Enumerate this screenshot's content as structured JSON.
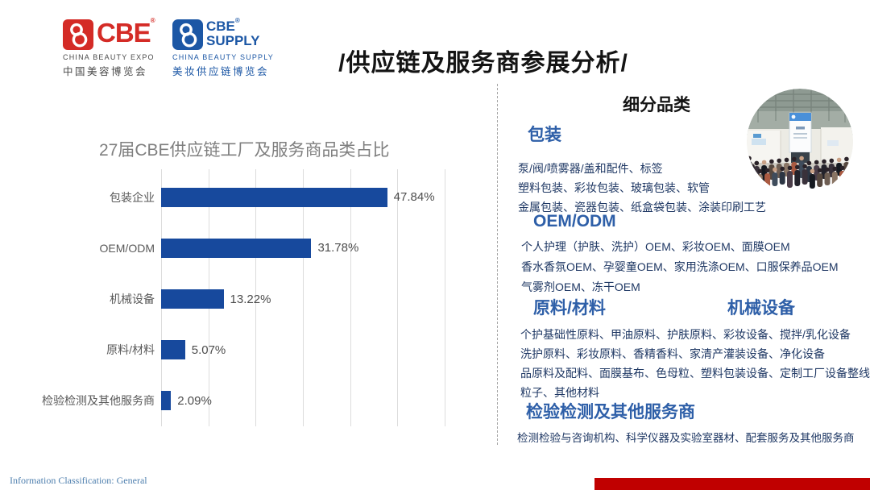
{
  "header": {
    "title": "/供应链及服务商参展分析/",
    "logo_cbe": {
      "wordmark": "CBE",
      "reg": "®",
      "subtitle_en": "CHINA BEAUTY EXPO",
      "subtitle_cn": "中国美容博览会"
    },
    "logo_supply": {
      "wordmark_line1": "CBE",
      "wordmark_line2": "SUPPLY",
      "reg": "®",
      "subtitle_en": "CHINA BEAUTY SUPPLY",
      "subtitle_cn": "美妆供应链博览会"
    }
  },
  "chart_data": {
    "type": "bar",
    "orientation": "horizontal",
    "title": "27届CBE供应链工厂及服务商品类占比",
    "categories": [
      "包装企业",
      "OEM/ODM",
      "机械设备",
      "原料/材料",
      "检验检测及其他服务商"
    ],
    "values": [
      47.84,
      31.78,
      13.22,
      5.07,
      2.09
    ],
    "value_labels": [
      "47.84%",
      "31.78%",
      "13.22%",
      "5.07%",
      "2.09%"
    ],
    "xlim": [
      0,
      60
    ],
    "grid_step": 10,
    "grid": true,
    "legend": false,
    "bar_color": "#17499d"
  },
  "panel": {
    "heading": "细分品类",
    "photo": "expo-hall-crowd-photo",
    "sections": [
      {
        "title": "包装",
        "lines": [
          "泵/阀/喷雾器/盖和配件、标签",
          "塑料包装、彩妆包装、玻璃包装、软管",
          "金属包装、瓷器包装、纸盒袋包装、涂装印刷工艺"
        ]
      },
      {
        "title": "OEM/ODM",
        "lines": [
          "个人护理（护肤、洗护）OEM、彩妆OEM、面膜OEM",
          "香水香氛OEM、孕婴童OEM、家用洗涤OEM、口服保养品OEM",
          "气雾剂OEM、冻干OEM"
        ]
      },
      {
        "title": "原料/材料",
        "lines": [
          "个护基础性原料、甲油原料、护肤原料、",
          "洗护原料、彩妆原料、香精香料、家清产",
          "品原料及配料、面膜基布、色母粒、塑料",
          "粒子、其他材料"
        ]
      },
      {
        "title": "机械设备",
        "lines": [
          "彩妆设备、搅拌/乳化设备",
          "灌装设备、净化设备",
          "包装设备、定制工厂设备整线"
        ]
      },
      {
        "title": "检验检测及其他服务商",
        "lines": [
          "检测检验与咨询机构、科学仪器及实验室器材、配套服务及其他服务商"
        ]
      }
    ]
  },
  "footer": {
    "classification": "Information Classification:  General"
  },
  "colors": {
    "bar_blue": "#17499d",
    "heading_blue": "#2e5fa8",
    "body_navy": "#1f3864",
    "logo_red": "#d42b26",
    "logo_blue": "#1c57a5",
    "footer_blue": "#4e7fae",
    "bottom_bar_red": "#c00000",
    "gridline_gray": "#dcdcdc"
  }
}
